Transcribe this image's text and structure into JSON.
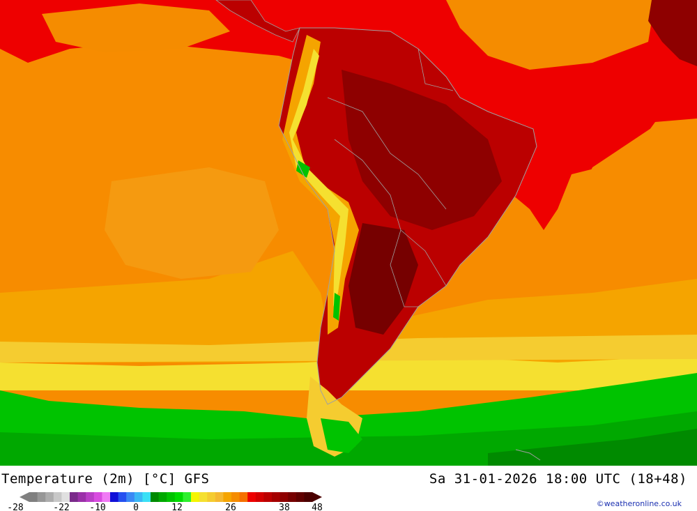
{
  "map": {
    "title": "Temperature (2m) [°C] GFS",
    "datetime": "Sa 31-01-2026 18:00 UTC (18+48)",
    "credit": "©weatheronline.co.uk"
  },
  "legend": {
    "ticks": [
      "-28",
      "-22",
      "-10",
      "0",
      "12",
      "26",
      "38",
      "48"
    ],
    "colors": [
      "#808080",
      "#979797",
      "#adadad",
      "#c8c8c8",
      "#e0e0e0",
      "#7a2a8a",
      "#9a30a8",
      "#b93ec6",
      "#d84be0",
      "#f07af5",
      "#1010d8",
      "#2550f0",
      "#3a88f5",
      "#3ab7f5",
      "#3ae0f5",
      "#008a00",
      "#00a800",
      "#00c300",
      "#00dc00",
      "#2ef02e",
      "#f5f500",
      "#f5e030",
      "#f5cc30",
      "#f5b830",
      "#f5a400",
      "#f58c00",
      "#f57000",
      "#ee0000",
      "#d40000",
      "#bb0000",
      "#a40000",
      "#8e0000",
      "#760000",
      "#600000",
      "#4a0000"
    ]
  },
  "palette": {
    "ocean_warm": "#f78c00",
    "ocean_mild": "#f5a400",
    "ocean_hot": "#ee0000",
    "yellow": "#f5e030",
    "green": "#00c300",
    "land_hot": "#bb0000",
    "land_very_hot": "#8e0000",
    "border": "#a0a0a0"
  }
}
